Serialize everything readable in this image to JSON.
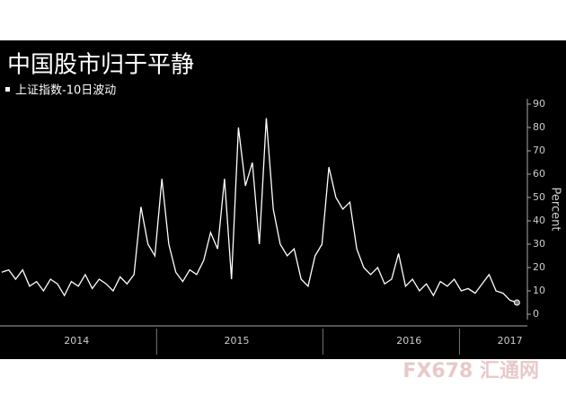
{
  "chart_data": {
    "type": "line",
    "title": "中国股市归于平静",
    "legend_label": "上证指数-10日波动",
    "y_label": "Percent",
    "watermark": "FX678 汇通网",
    "x": [
      2014.14,
      2014.18,
      2014.22,
      2014.26,
      2014.3,
      2014.34,
      2014.38,
      2014.42,
      2014.46,
      2014.5,
      2014.54,
      2014.58,
      2014.62,
      2014.66,
      2014.7,
      2014.74,
      2014.78,
      2014.82,
      2014.86,
      2014.9,
      2014.94,
      2014.98,
      2015.02,
      2015.06,
      2015.1,
      2015.14,
      2015.18,
      2015.22,
      2015.26,
      2015.3,
      2015.34,
      2015.38,
      2015.42,
      2015.46,
      2015.5,
      2015.54,
      2015.58,
      2015.62,
      2015.66,
      2015.7,
      2015.74,
      2015.78,
      2015.82,
      2015.86,
      2015.9,
      2015.94,
      2015.98,
      2016.02,
      2016.06,
      2016.1,
      2016.14,
      2016.18,
      2016.22,
      2016.26,
      2016.3,
      2016.34,
      2016.38,
      2016.42,
      2016.46,
      2016.5,
      2016.54,
      2016.58,
      2016.62,
      2016.66,
      2016.7,
      2016.74,
      2016.78,
      2016.82,
      2016.86,
      2016.9,
      2016.94,
      2016.98,
      2017.02,
      2017.06,
      2017.1
    ],
    "series": [
      {
        "name": "上证指数-10日波动",
        "color": "#ffffff",
        "values": [
          18,
          19,
          15,
          19,
          12,
          14,
          10,
          15,
          13,
          8,
          14,
          12,
          17,
          11,
          15,
          13,
          10,
          16,
          13,
          17,
          46,
          30,
          25,
          58,
          30,
          18,
          14,
          19,
          17,
          23,
          35,
          28,
          58,
          15,
          80,
          55,
          65,
          30,
          84,
          45,
          30,
          25,
          28,
          15,
          12,
          25,
          30,
          63,
          50,
          45,
          48,
          28,
          20,
          17,
          20,
          13,
          15,
          26,
          12,
          15,
          10,
          13,
          8,
          14,
          12,
          15,
          10,
          11,
          9,
          13,
          17,
          10,
          9,
          6,
          5
        ]
      }
    ],
    "xlim": [
      2014.13,
      2017.16
    ],
    "xticks": [
      {
        "value": 2014.57,
        "label": "2014"
      },
      {
        "value": 2015.49,
        "label": "2015"
      },
      {
        "value": 2016.48,
        "label": "2016"
      },
      {
        "value": 2017.06,
        "label": "2017"
      }
    ],
    "ylim": [
      0,
      90
    ],
    "yticks": [
      0,
      10,
      20,
      30,
      40,
      50,
      60,
      70,
      80,
      90
    ],
    "grid": false
  }
}
